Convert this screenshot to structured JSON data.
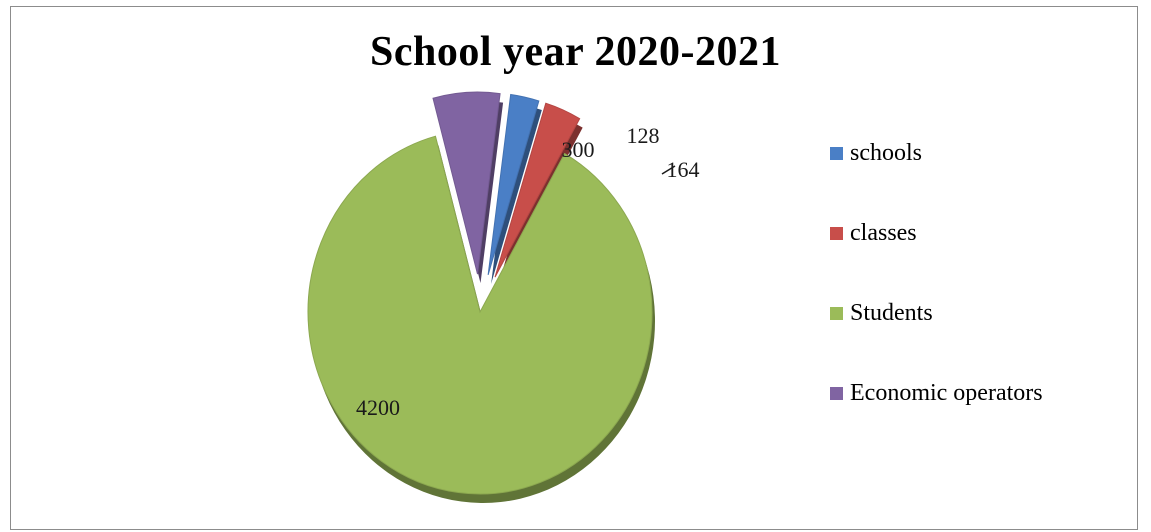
{
  "chart_data": {
    "type": "pie",
    "title": "School year 2020-2021",
    "categories": [
      "schools",
      "classes",
      "Students",
      "Economic operators"
    ],
    "values": [
      128,
      164,
      4200,
      300
    ],
    "colors": [
      "#4a7fc6",
      "#c84e4a",
      "#9bbb59",
      "#8064a2"
    ],
    "exploded": [
      true,
      true,
      false,
      true
    ],
    "data_labels": [
      "128",
      "164",
      "4200",
      "300"
    ],
    "legend": "right"
  }
}
